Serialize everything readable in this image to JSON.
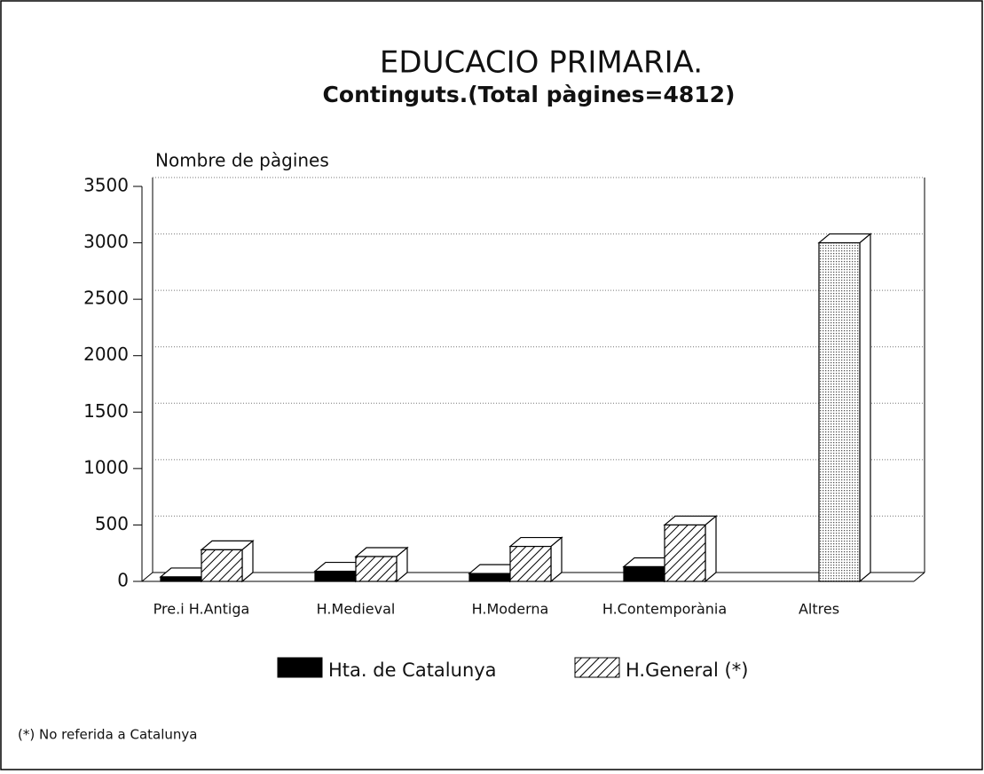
{
  "chart_data": {
    "type": "bar3d",
    "title": "EDUCACIO PRIMARIA.",
    "subtitle": "Continguts.(Total pàgines=4812)",
    "y_label": "Nombre de pàgines",
    "categories": [
      "Pre.i H.Antiga",
      "H.Medieval",
      "H.Moderna",
      "H.Contemporània",
      "Altres"
    ],
    "series": [
      {
        "name": "Hta. de Catalunya",
        "color": "#000000",
        "values": [
          40,
          90,
          70,
          130,
          null
        ]
      },
      {
        "name": "H.General (*)",
        "color": "#ffffff",
        "pattern": [
          "hatch",
          "hatch",
          "hatch",
          "hatch",
          "dots"
        ],
        "values": [
          280,
          220,
          310,
          500,
          3000
        ]
      }
    ],
    "ylim": [
      0,
      3500
    ],
    "yticks": [
      0,
      500,
      1000,
      1500,
      2000,
      2500,
      3000,
      3500
    ],
    "grid": true,
    "footnote": "(*) No referida a Catalunya"
  }
}
